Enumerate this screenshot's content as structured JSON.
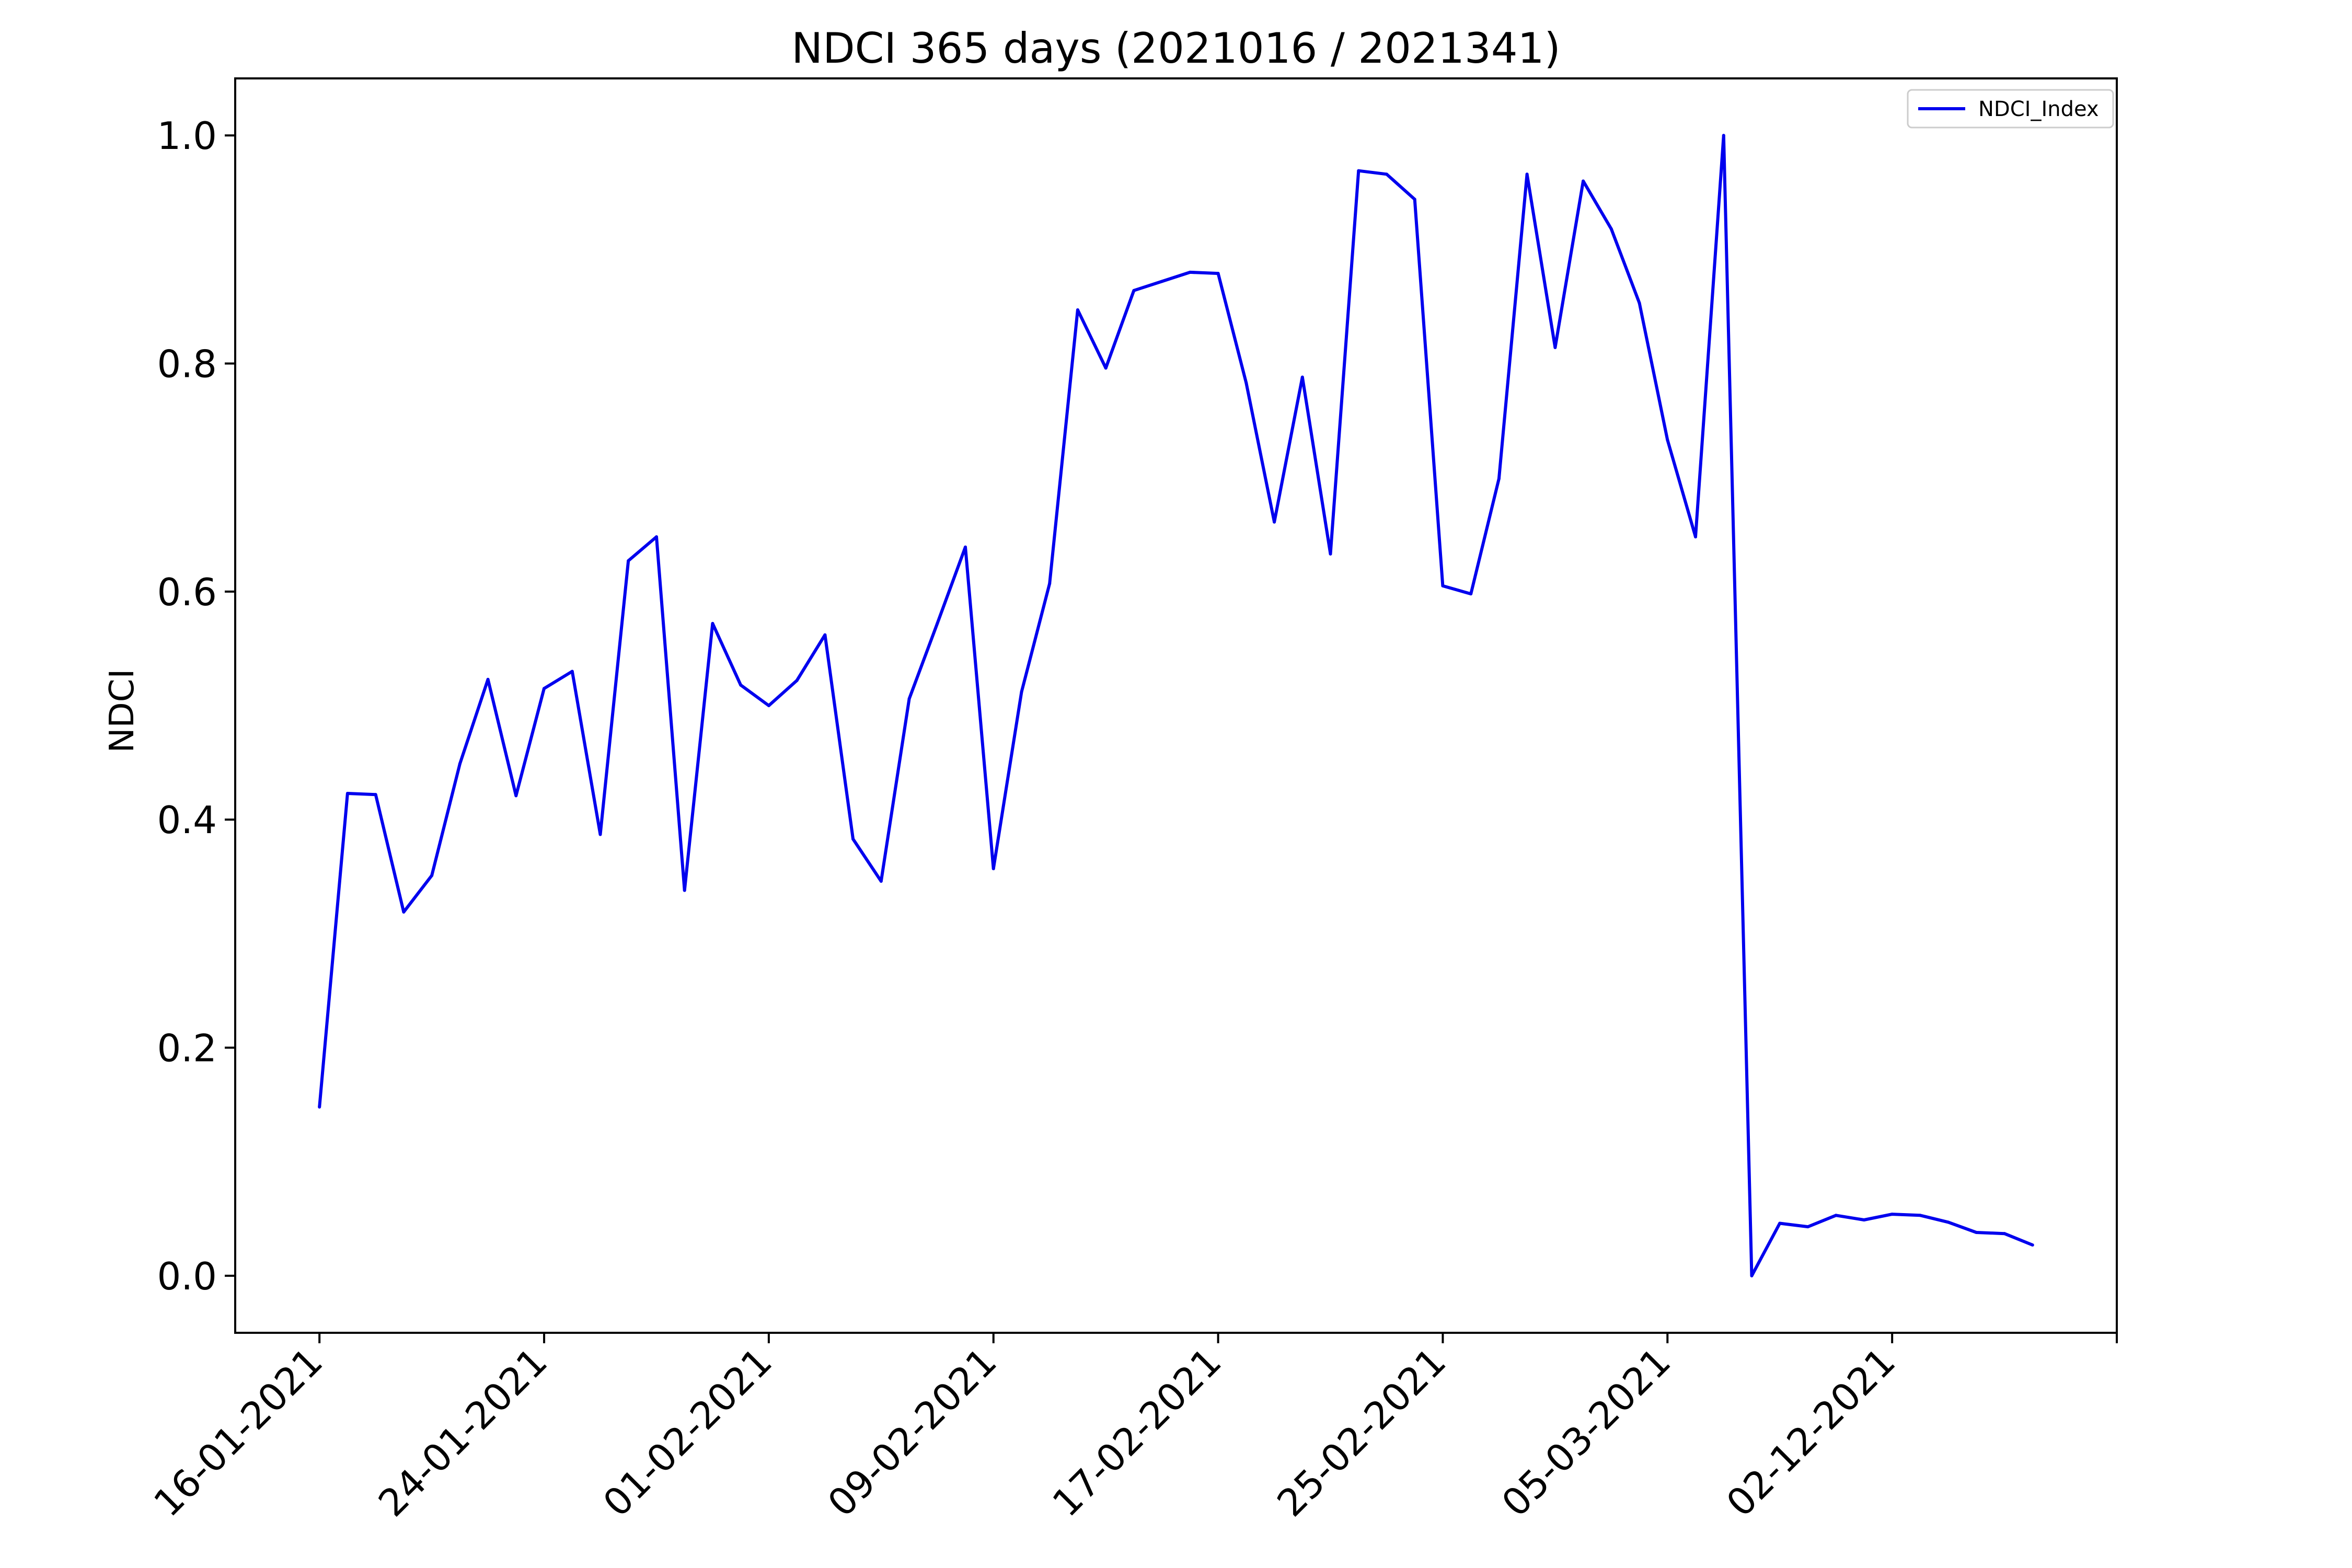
{
  "chart_data": {
    "type": "line",
    "title": "NDCI 365 days (2021016 / 2021341)",
    "xlabel": "",
    "ylabel": "NDCI",
    "ylim": [
      -0.05,
      1.05
    ],
    "yticks": [
      0.0,
      0.2,
      0.4,
      0.6,
      0.8,
      1.0
    ],
    "ytick_labels": [
      "0.0",
      "0.2",
      "0.4",
      "0.6",
      "0.8",
      "1.0"
    ],
    "xlim": [
      -3,
      64
    ],
    "xticks": [
      0,
      8,
      16,
      24,
      32,
      40,
      48,
      56,
      64
    ],
    "xtick_labels": [
      "16-01-2021",
      "24-01-2021",
      "01-02-2021",
      "09-02-2021",
      "17-02-2021",
      "25-02-2021",
      "05-03-2021",
      "02-12-2021",
      ""
    ],
    "grid": false,
    "legend": "top-right",
    "colors": {
      "series": "#0000ee",
      "axes": "#000000"
    },
    "series": [
      {
        "name": "NDCI_Index",
        "x": [
          0,
          1,
          2,
          3,
          4,
          5,
          6,
          7,
          8,
          9,
          10,
          11,
          12,
          13,
          14,
          15,
          16,
          17,
          18,
          19,
          20,
          21,
          22,
          23,
          24,
          25,
          26,
          27,
          28,
          29,
          30,
          31,
          32,
          33,
          34,
          35,
          36,
          37,
          38,
          39,
          40,
          41,
          42,
          43,
          44,
          45,
          46,
          47,
          48,
          49,
          50,
          51,
          52,
          53,
          54,
          55,
          56,
          57,
          58,
          59,
          60,
          61
        ],
        "values": [
          0.148,
          0.423,
          0.422,
          0.319,
          0.351,
          0.449,
          0.523,
          0.421,
          0.515,
          0.53,
          0.387,
          0.627,
          0.648,
          0.338,
          0.572,
          0.518,
          0.5,
          0.522,
          0.562,
          0.383,
          0.346,
          0.506,
          0.572,
          0.639,
          0.357,
          0.512,
          0.607,
          0.847,
          0.796,
          0.864,
          0.872,
          0.88,
          0.879,
          0.783,
          0.661,
          0.788,
          0.633,
          0.969,
          0.966,
          0.944,
          0.605,
          0.598,
          0.699,
          0.966,
          0.814,
          0.96,
          0.918,
          0.853,
          0.733,
          0.648,
          1.0,
          0.0,
          0.046,
          0.043,
          0.053,
          0.049,
          0.054,
          0.053,
          0.047,
          0.038,
          0.037,
          0.027
        ]
      }
    ]
  }
}
